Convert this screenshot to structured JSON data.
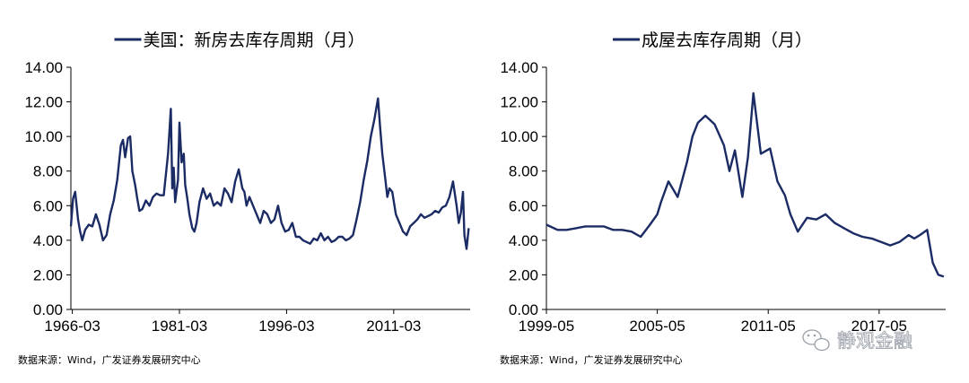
{
  "colors": {
    "series": "#1b2b64",
    "axis": "#000000",
    "watermark": "#9aa0a8"
  },
  "source_text": "数据来源：Wind，广发证券发展研究中心",
  "watermark": {
    "icon": "wechat-icon",
    "text": "静观金融"
  },
  "chart_data": [
    {
      "type": "line",
      "title": "",
      "xlabel": "",
      "ylabel": "",
      "legend": "top-center",
      "grid": false,
      "series": [
        {
          "name": "美国：新房去库存周期（月）",
          "x": [
            1966.0,
            1966.3,
            1966.6,
            1967.0,
            1967.3,
            1967.6,
            1968.0,
            1968.5,
            1969.0,
            1969.5,
            1970.0,
            1970.5,
            1971.0,
            1971.5,
            1972.0,
            1972.5,
            1973.0,
            1973.3,
            1973.6,
            1974.0,
            1974.3,
            1974.6,
            1975.0,
            1975.3,
            1975.6,
            1976.0,
            1976.5,
            1977.0,
            1977.5,
            1978.0,
            1978.5,
            1979.0,
            1979.3,
            1979.6,
            1980.0,
            1980.2,
            1980.4,
            1980.6,
            1981.0,
            1981.2,
            1981.5,
            1981.8,
            1982.0,
            1982.3,
            1982.6,
            1983.0,
            1983.3,
            1983.6,
            1984.0,
            1984.5,
            1985.0,
            1985.5,
            1986.0,
            1986.5,
            1987.0,
            1987.5,
            1988.0,
            1988.5,
            1989.0,
            1989.5,
            1990.0,
            1990.3,
            1990.6,
            1991.0,
            1991.5,
            1992.0,
            1992.5,
            1993.0,
            1993.5,
            1994.0,
            1994.5,
            1995.0,
            1995.5,
            1996.0,
            1996.5,
            1997.0,
            1997.5,
            1998.0,
            1998.5,
            1999.0,
            1999.5,
            2000.0,
            2000.5,
            2001.0,
            2001.5,
            2002.0,
            2002.5,
            2003.0,
            2003.5,
            2004.0,
            2004.5,
            2005.0,
            2005.5,
            2006.0,
            2006.5,
            2007.0,
            2007.5,
            2008.0,
            2008.5,
            2009.0,
            2009.3,
            2009.6,
            2010.0,
            2010.3,
            2010.6,
            2011.0,
            2011.5,
            2012.0,
            2012.5,
            2013.0,
            2013.5,
            2014.0,
            2014.5,
            2015.0,
            2015.5,
            2016.0,
            2016.5,
            2017.0,
            2017.5,
            2018.0,
            2018.5,
            2019.0,
            2019.5,
            2020.0,
            2020.3,
            2020.6,
            2020.9,
            2021.1,
            2021.4,
            2021.7
          ],
          "y": [
            4.8,
            6.4,
            6.8,
            5.2,
            4.5,
            4.0,
            4.6,
            4.9,
            4.8,
            5.5,
            4.9,
            4.0,
            4.3,
            5.5,
            6.3,
            7.5,
            9.5,
            9.8,
            8.8,
            9.9,
            10.0,
            8.0,
            7.2,
            6.4,
            5.7,
            5.8,
            6.3,
            6.0,
            6.5,
            6.7,
            6.6,
            6.6,
            7.8,
            9.0,
            11.6,
            7.0,
            8.2,
            6.2,
            7.5,
            10.8,
            8.5,
            9.0,
            7.2,
            6.4,
            5.5,
            4.7,
            4.5,
            5.0,
            6.2,
            7.0,
            6.4,
            6.7,
            6.0,
            6.2,
            6.0,
            7.0,
            6.7,
            6.2,
            7.4,
            8.1,
            7.0,
            6.8,
            6.0,
            6.5,
            6.0,
            5.5,
            5.0,
            5.7,
            5.5,
            5.0,
            5.2,
            6.0,
            5.0,
            4.5,
            4.6,
            5.0,
            4.2,
            4.2,
            4.0,
            3.9,
            3.8,
            4.1,
            4.0,
            4.4,
            4.0,
            4.2,
            3.9,
            4.0,
            4.2,
            4.2,
            4.0,
            4.1,
            4.3,
            5.2,
            6.2,
            7.5,
            8.6,
            10.0,
            11.0,
            12.2,
            10.5,
            9.0,
            7.6,
            6.5,
            7.0,
            6.8,
            5.5,
            5.0,
            4.5,
            4.3,
            4.8,
            5.0,
            5.2,
            5.5,
            5.3,
            5.4,
            5.5,
            5.7,
            5.6,
            5.9,
            6.0,
            6.5,
            7.4,
            6.0,
            5.0,
            5.6,
            6.8,
            4.3,
            3.5,
            4.7
          ]
        }
      ],
      "xlim": [
        1966,
        2021.9
      ],
      "ylim": [
        0,
        14
      ],
      "x_ticks": [
        {
          "label": "1966-03",
          "value": 1966.2
        },
        {
          "label": "1981-03",
          "value": 1981.2
        },
        {
          "label": "1996-03",
          "value": 1996.2
        },
        {
          "label": "2011-03",
          "value": 2011.2
        }
      ],
      "y_ticks": [
        "0.00",
        "2.00",
        "4.00",
        "6.00",
        "8.00",
        "10.00",
        "12.00",
        "14.00"
      ]
    },
    {
      "type": "line",
      "title": "",
      "xlabel": "",
      "ylabel": "",
      "legend": "top-center",
      "grid": false,
      "series": [
        {
          "name": "成屋去库存周期（月）",
          "x": [
            1999.4,
            2000.0,
            2000.5,
            2001.0,
            2001.5,
            2002.0,
            2002.5,
            2003.0,
            2003.5,
            2004.0,
            2004.5,
            2005.0,
            2005.4,
            2005.6,
            2006.0,
            2006.5,
            2007.0,
            2007.3,
            2007.6,
            2008.0,
            2008.5,
            2009.0,
            2009.3,
            2009.6,
            2010.0,
            2010.3,
            2010.6,
            2011.0,
            2011.5,
            2011.9,
            2012.3,
            2012.6,
            2013.0,
            2013.5,
            2014.0,
            2014.5,
            2015.0,
            2015.5,
            2016.0,
            2016.5,
            2017.0,
            2017.5,
            2018.0,
            2018.5,
            2019.0,
            2019.3,
            2019.6,
            2020.0,
            2020.3,
            2020.6,
            2020.9
          ],
          "y": [
            4.9,
            4.6,
            4.6,
            4.7,
            4.8,
            4.8,
            4.8,
            4.6,
            4.6,
            4.5,
            4.2,
            4.9,
            5.5,
            6.2,
            7.4,
            6.5,
            8.5,
            10.0,
            10.8,
            11.2,
            10.7,
            9.5,
            8.0,
            9.2,
            6.5,
            8.8,
            12.5,
            9.0,
            9.3,
            7.4,
            6.6,
            5.5,
            4.5,
            5.3,
            5.2,
            5.5,
            5.0,
            4.7,
            4.4,
            4.2,
            4.1,
            3.9,
            3.7,
            3.9,
            4.3,
            4.1,
            4.3,
            4.6,
            2.7,
            2.0,
            1.9
          ]
        }
      ],
      "xlim": [
        1999.4,
        2021.0
      ],
      "ylim": [
        0,
        14
      ],
      "x_ticks": [
        {
          "label": "1999-05",
          "value": 1999.4
        },
        {
          "label": "2005-05",
          "value": 2005.4
        },
        {
          "label": "2011-05",
          "value": 2011.4
        },
        {
          "label": "2017-05",
          "value": 2017.4
        }
      ],
      "y_ticks": [
        "0.00",
        "2.00",
        "4.00",
        "6.00",
        "8.00",
        "10.00",
        "12.00",
        "14.00"
      ]
    }
  ]
}
